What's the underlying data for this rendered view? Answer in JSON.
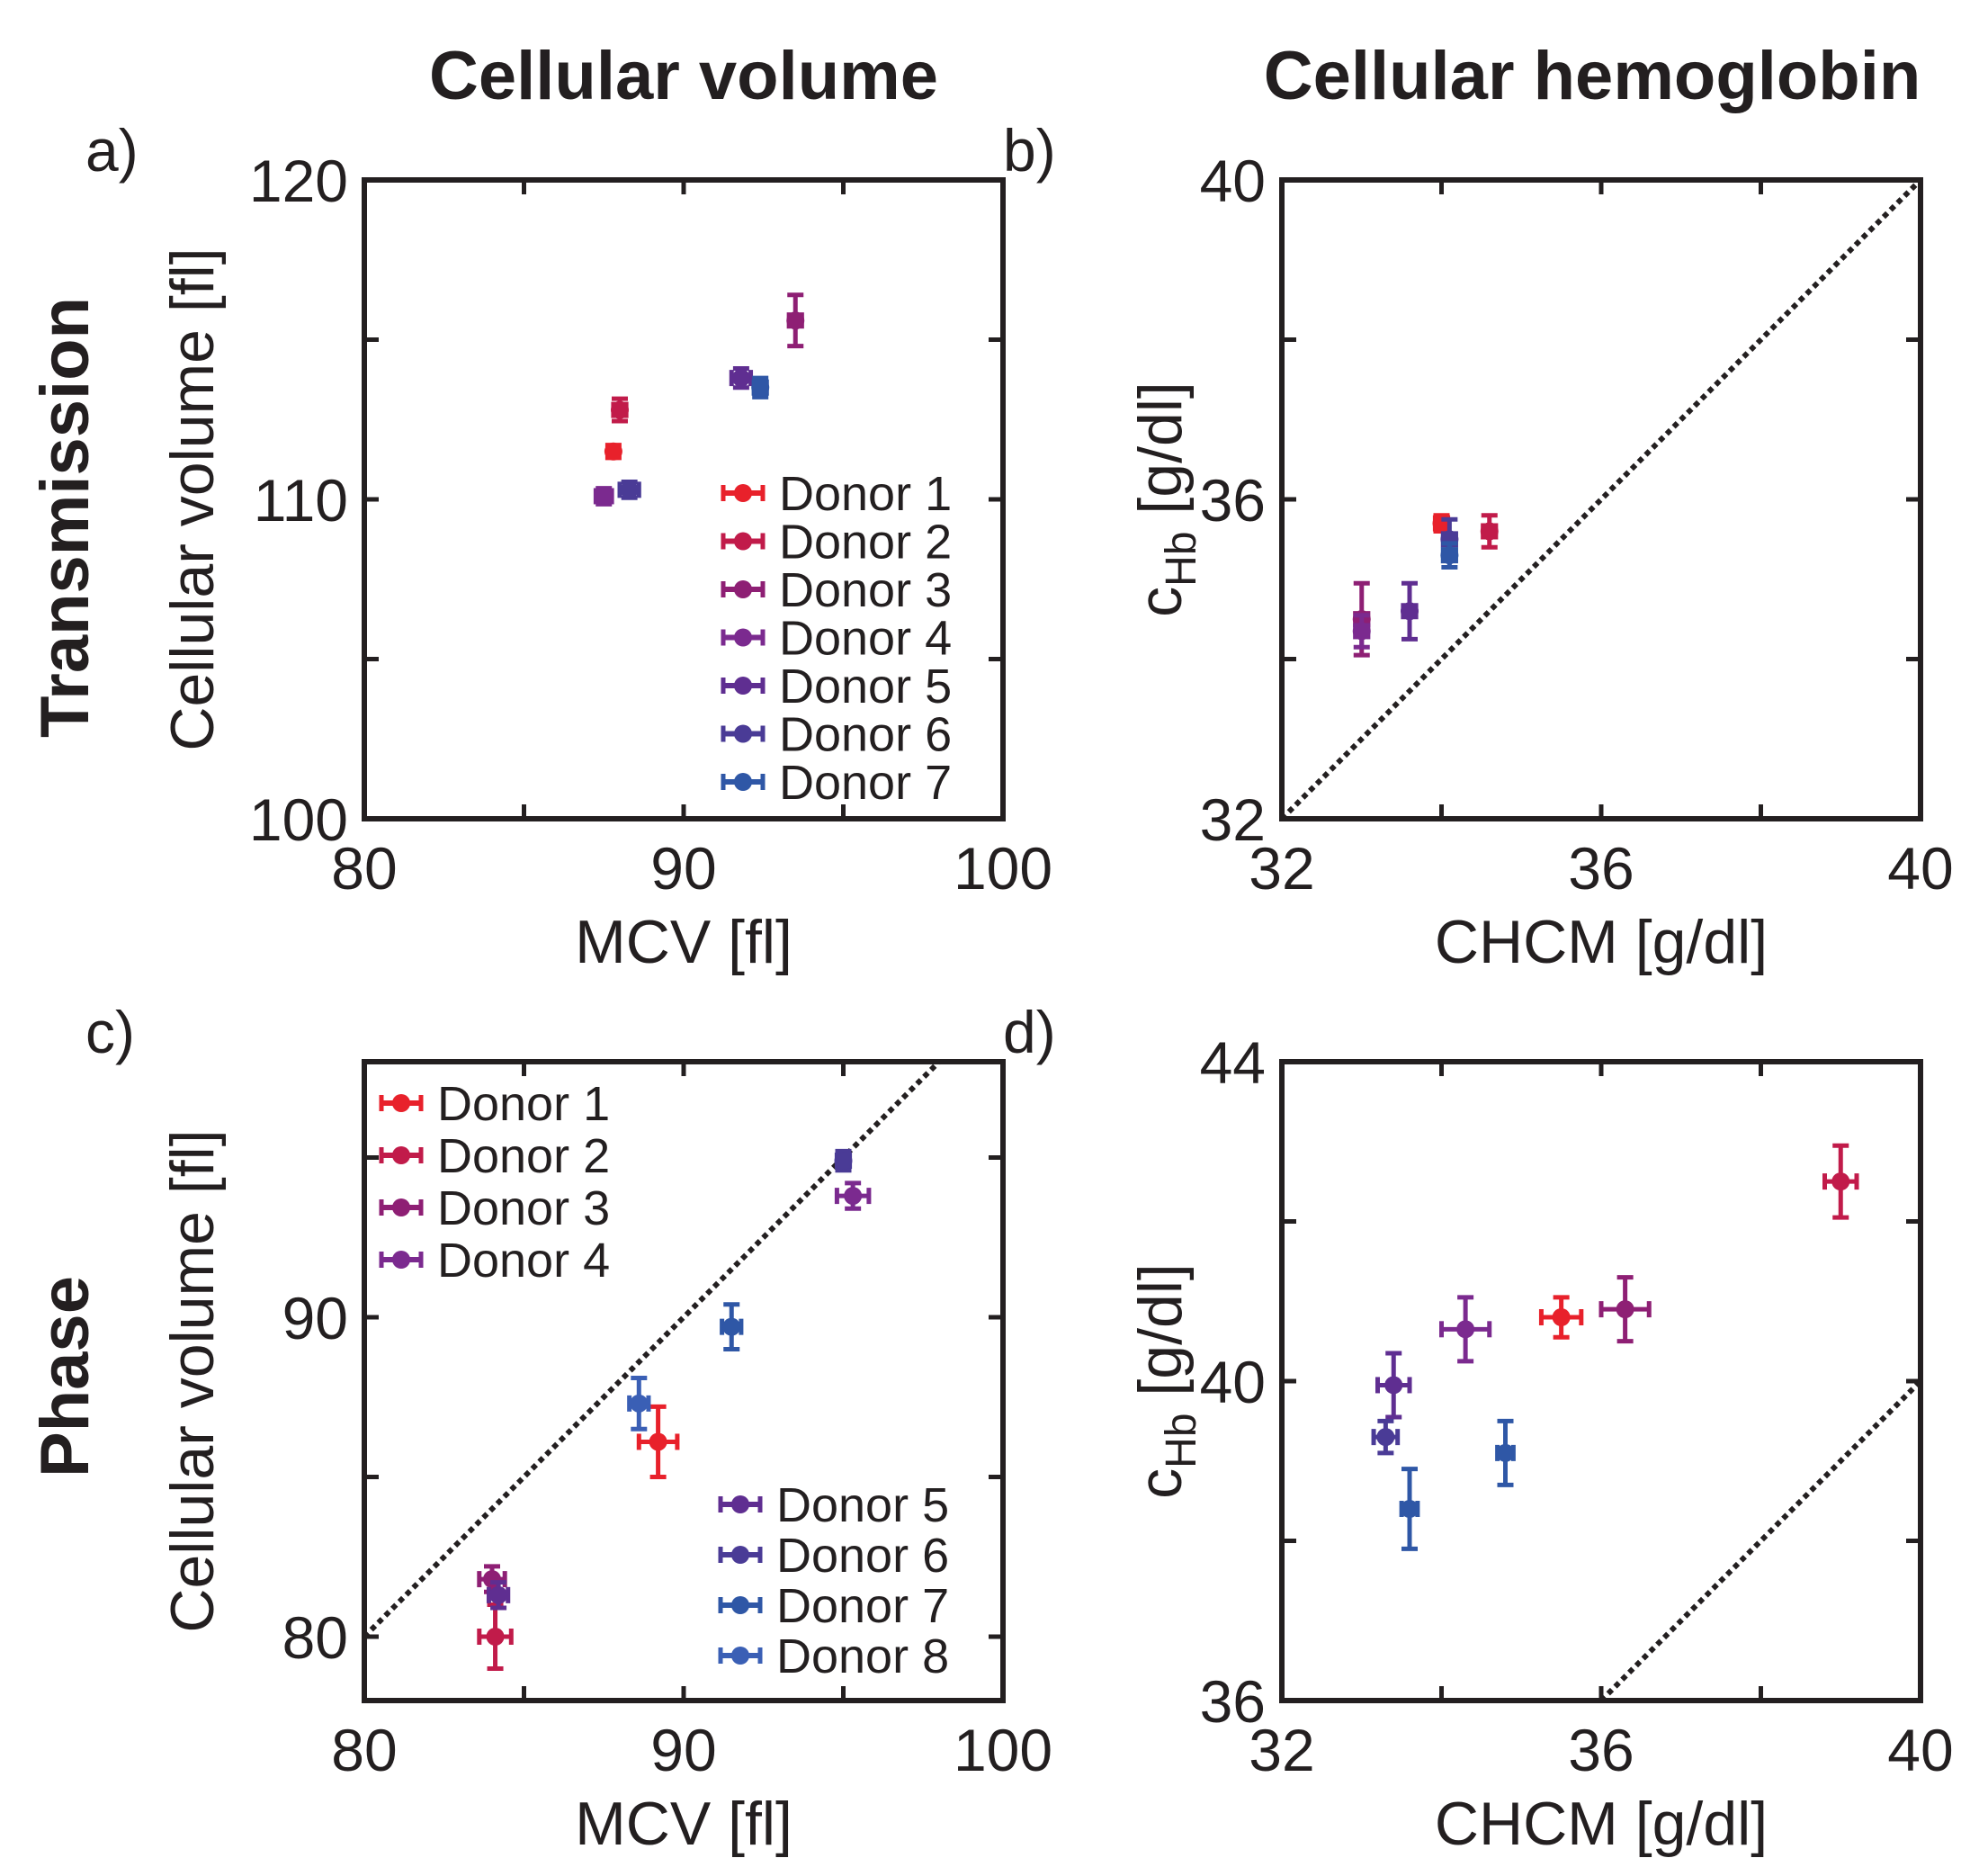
{
  "figure": {
    "col_titles": [
      "Cellular volume",
      "Cellular hemoglobin"
    ],
    "row_titles": [
      "Transmission",
      "Phase"
    ]
  },
  "chart_data": [
    {
      "id": "a",
      "type": "scatter",
      "panel_label": "a)",
      "xlabel": "MCV [fl]",
      "ylabel": "Cellular volume [fl]",
      "xlim": [
        80,
        100
      ],
      "ylim": [
        100,
        120
      ],
      "xticks": [
        80,
        90,
        100
      ],
      "yticks": [
        100,
        110,
        120
      ],
      "minor_xticks": [
        85,
        95
      ],
      "minor_yticks": [
        105,
        115
      ],
      "identity_line": true,
      "legend_position": "bottom-right",
      "legend": [
        {
          "label": "Donor 1",
          "color": "#e8212b"
        },
        {
          "label": "Donor 2",
          "color": "#c11b4a"
        },
        {
          "label": "Donor 3",
          "color": "#8e1f74"
        },
        {
          "label": "Donor 4",
          "color": "#7b2a8f"
        },
        {
          "label": "Donor 5",
          "color": "#5f2e91"
        },
        {
          "label": "Donor 6",
          "color": "#4a3b96"
        },
        {
          "label": "Donor 7",
          "color": "#2f57a6"
        }
      ],
      "points": [
        {
          "x": 87.8,
          "y": 111.5,
          "xerr": 0.15,
          "yerr": 0.2,
          "color": "#e8212b"
        },
        {
          "x": 88.0,
          "y": 112.8,
          "xerr": 0.2,
          "yerr": 0.35,
          "color": "#c11b4a"
        },
        {
          "x": 93.5,
          "y": 115.6,
          "xerr": 0.2,
          "yerr": 0.8,
          "color": "#8e1f74"
        },
        {
          "x": 87.5,
          "y": 110.1,
          "xerr": 0.25,
          "yerr": 0.25,
          "color": "#7b2a8f"
        },
        {
          "x": 91.8,
          "y": 113.8,
          "xerr": 0.3,
          "yerr": 0.3,
          "color": "#5f2e91"
        },
        {
          "x": 88.3,
          "y": 110.3,
          "xerr": 0.3,
          "yerr": 0.25,
          "color": "#4a3b96"
        },
        {
          "x": 92.4,
          "y": 113.5,
          "xerr": 0.2,
          "yerr": 0.3,
          "color": "#2f57a6"
        }
      ]
    },
    {
      "id": "b",
      "type": "scatter",
      "panel_label": "b)",
      "xlabel": "CHCM [g/dl]",
      "ylabel_main": "c",
      "ylabel_sub": "Hb",
      "ylabel_unit": " [g/dl]",
      "xlim": [
        32,
        40
      ],
      "ylim": [
        32,
        40
      ],
      "xticks": [
        32,
        36,
        40
      ],
      "yticks": [
        32,
        36,
        40
      ],
      "minor_xticks": [
        34,
        38
      ],
      "minor_yticks": [
        34,
        38
      ],
      "identity_line": true,
      "points": [
        {
          "x": 34.0,
          "y": 35.7,
          "xerr": 0.08,
          "yerr": 0.1,
          "color": "#e8212b"
        },
        {
          "x": 34.6,
          "y": 35.6,
          "xerr": 0.08,
          "yerr": 0.2,
          "color": "#c11b4a"
        },
        {
          "x": 33.0,
          "y": 34.5,
          "xerr": 0.08,
          "yerr": 0.45,
          "color": "#8e1f74"
        },
        {
          "x": 33.0,
          "y": 34.35,
          "xerr": 0.08,
          "yerr": 0.2,
          "color": "#7b2a8f"
        },
        {
          "x": 33.6,
          "y": 34.6,
          "xerr": 0.08,
          "yerr": 0.35,
          "color": "#5f2e91"
        },
        {
          "x": 34.1,
          "y": 35.5,
          "xerr": 0.08,
          "yerr": 0.25,
          "color": "#4a3b96"
        },
        {
          "x": 34.1,
          "y": 35.3,
          "xerr": 0.08,
          "yerr": 0.15,
          "color": "#2f57a6"
        }
      ]
    },
    {
      "id": "c",
      "type": "scatter",
      "panel_label": "c)",
      "xlabel": "MCV [fl]",
      "ylabel": "Cellular volume [fl]",
      "xlim": [
        80,
        100
      ],
      "ylim": [
        78,
        98
      ],
      "xticks": [
        80,
        90,
        100
      ],
      "yticks": [
        80,
        90
      ],
      "minor_xticks": [
        85,
        95
      ],
      "minor_yticks": [
        85,
        95
      ],
      "identity_line": true,
      "legend_groups": [
        {
          "position": "top-left",
          "entries": [
            {
              "label": "Donor 1",
              "color": "#e8212b"
            },
            {
              "label": "Donor 2",
              "color": "#c11b4a"
            },
            {
              "label": "Donor 3",
              "color": "#8e1f74"
            },
            {
              "label": "Donor 4",
              "color": "#7b2a8f"
            }
          ]
        },
        {
          "position": "bottom-right",
          "entries": [
            {
              "label": "Donor 5",
              "color": "#5f2e91"
            },
            {
              "label": "Donor 6",
              "color": "#4a3b96"
            },
            {
              "label": "Donor 7",
              "color": "#2f57a6"
            },
            {
              "label": "Donor 8",
              "color": "#3a5fb5"
            }
          ]
        }
      ],
      "points": [
        {
          "x": 89.2,
          "y": 86.1,
          "xerr": 0.6,
          "yerr": 1.1,
          "color": "#e8212b"
        },
        {
          "x": 84.1,
          "y": 80.0,
          "xerr": 0.5,
          "yerr": 1.0,
          "color": "#c11b4a"
        },
        {
          "x": 84.0,
          "y": 81.8,
          "xerr": 0.4,
          "yerr": 0.4,
          "color": "#8e1f74"
        },
        {
          "x": 95.3,
          "y": 93.8,
          "xerr": 0.5,
          "yerr": 0.4,
          "color": "#7b2a8f"
        },
        {
          "x": 84.2,
          "y": 81.3,
          "xerr": 0.3,
          "yerr": 0.4,
          "color": "#5f2e91"
        },
        {
          "x": 95.0,
          "y": 94.9,
          "xerr": 0.2,
          "yerr": 0.3,
          "color": "#4a3b96"
        },
        {
          "x": 91.5,
          "y": 89.7,
          "xerr": 0.3,
          "yerr": 0.7,
          "color": "#2f57a6"
        },
        {
          "x": 88.6,
          "y": 87.3,
          "xerr": 0.3,
          "yerr": 0.8,
          "color": "#3a5fb5"
        }
      ]
    },
    {
      "id": "d",
      "type": "scatter",
      "panel_label": "d)",
      "xlabel": "CHCM [g/dl]",
      "ylabel_main": "c",
      "ylabel_sub": "Hb",
      "ylabel_unit": " [g/dl]",
      "xlim": [
        32,
        40
      ],
      "ylim": [
        36,
        44
      ],
      "xticks": [
        32,
        36,
        40
      ],
      "yticks": [
        36,
        40,
        44
      ],
      "minor_xticks": [
        34,
        38
      ],
      "minor_yticks": [
        38,
        42
      ],
      "identity_line": true,
      "points": [
        {
          "x": 35.5,
          "y": 40.8,
          "xerr": 0.25,
          "yerr": 0.25,
          "color": "#e8212b"
        },
        {
          "x": 39.0,
          "y": 42.5,
          "xerr": 0.2,
          "yerr": 0.45,
          "color": "#c11b4a"
        },
        {
          "x": 36.3,
          "y": 40.9,
          "xerr": 0.3,
          "yerr": 0.4,
          "color": "#8e1f74"
        },
        {
          "x": 34.3,
          "y": 40.65,
          "xerr": 0.3,
          "yerr": 0.4,
          "color": "#7b2a8f"
        },
        {
          "x": 33.4,
          "y": 39.95,
          "xerr": 0.2,
          "yerr": 0.4,
          "color": "#5f2e91"
        },
        {
          "x": 33.3,
          "y": 39.3,
          "xerr": 0.15,
          "yerr": 0.2,
          "color": "#4a3b96"
        },
        {
          "x": 34.8,
          "y": 39.1,
          "xerr": 0.1,
          "yerr": 0.4,
          "color": "#2f57a6"
        },
        {
          "x": 33.6,
          "y": 38.4,
          "xerr": 0.1,
          "yerr": 0.5,
          "color": "#2f57a6"
        }
      ]
    }
  ]
}
